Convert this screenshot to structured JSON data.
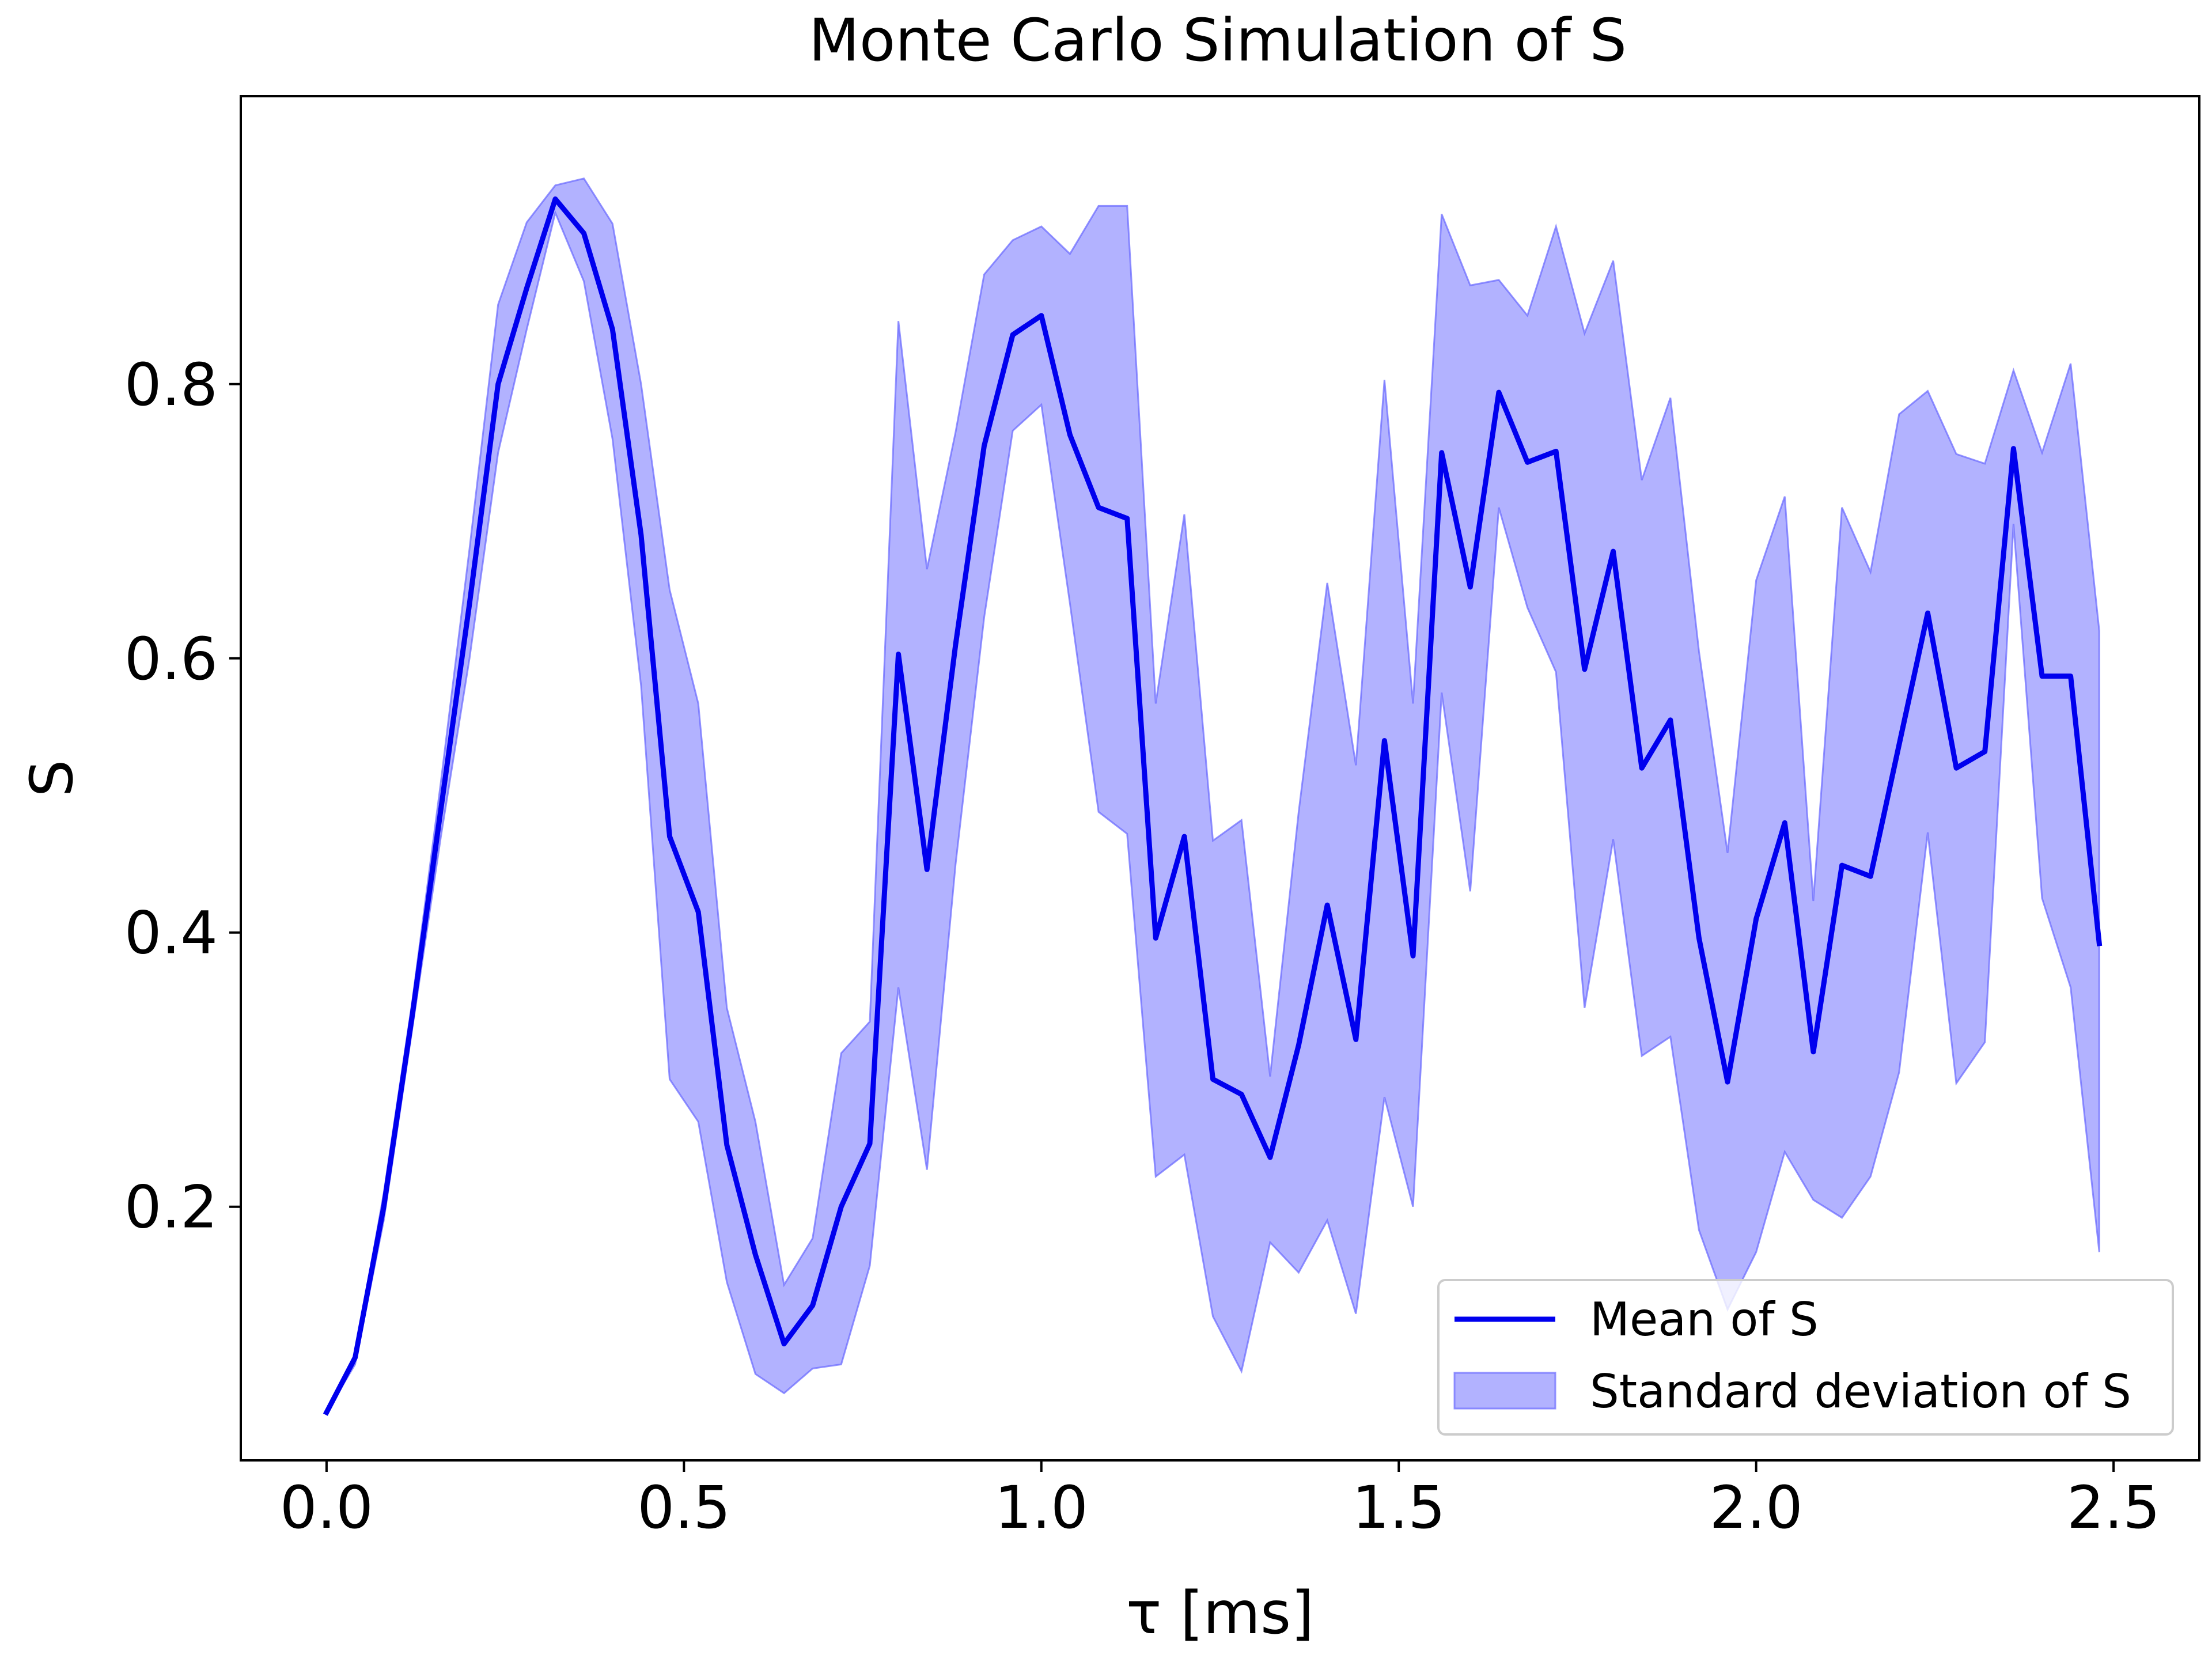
{
  "chart_data": {
    "type": "line",
    "title": "Monte Carlo Simulation of S",
    "xlabel": "τ [ms]",
    "ylabel": "S",
    "xlim": [
      -0.12,
      2.62
    ],
    "ylim": [
      0.015,
      1.01
    ],
    "xticks": [
      {
        "value": 0.0,
        "label": "0.0"
      },
      {
        "value": 0.5,
        "label": "0.5"
      },
      {
        "value": 1.0,
        "label": "1.0"
      },
      {
        "value": 1.5,
        "label": "1.5"
      },
      {
        "value": 2.0,
        "label": "2.0"
      },
      {
        "value": 2.5,
        "label": "2.5"
      }
    ],
    "yticks": [
      {
        "value": 0.2,
        "label": "0.2"
      },
      {
        "value": 0.4,
        "label": "0.4"
      },
      {
        "value": 0.6,
        "label": "0.6"
      },
      {
        "value": 0.8,
        "label": "0.8"
      }
    ],
    "grid": false,
    "legend_position": "lower-right",
    "x": [
      0.0,
      0.04,
      0.08,
      0.12,
      0.16,
      0.2,
      0.24,
      0.28,
      0.32,
      0.36,
      0.4,
      0.44,
      0.48,
      0.52,
      0.56,
      0.6,
      0.64,
      0.68,
      0.72,
      0.76,
      0.8,
      0.84,
      0.88,
      0.92,
      0.96,
      1.0,
      1.04,
      1.08,
      1.12,
      1.16,
      1.2,
      1.24,
      1.28,
      1.32,
      1.36,
      1.4,
      1.44,
      1.48,
      1.52,
      1.56,
      1.6,
      1.64,
      1.68,
      1.72,
      1.76,
      1.8,
      1.84,
      1.88,
      1.92,
      1.96,
      2.0,
      2.04,
      2.08,
      2.12,
      2.16,
      2.2,
      2.24,
      2.28,
      2.32,
      2.36,
      2.4,
      2.44,
      2.48
    ],
    "series": [
      {
        "name": "Mean of S",
        "role": "line",
        "color": "#0000ee",
        "values": [
          0.05,
          0.09,
          0.2,
          0.34,
          0.49,
          0.64,
          0.8,
          0.87,
          0.935,
          0.91,
          0.84,
          0.69,
          0.47,
          0.415,
          0.245,
          0.165,
          0.1,
          0.128,
          0.2,
          0.246,
          0.603,
          0.446,
          0.61,
          0.755,
          0.836,
          0.85,
          0.763,
          0.71,
          0.702,
          0.396,
          0.47,
          0.293,
          0.282,
          0.236,
          0.318,
          0.42,
          0.322,
          0.54,
          0.383,
          0.75,
          0.652,
          0.794,
          0.743,
          0.751,
          0.592,
          0.678,
          0.52,
          0.555,
          0.396,
          0.291,
          0.41,
          0.48,
          0.313,
          0.449,
          0.441,
          0.537,
          0.633,
          0.52,
          0.532,
          0.753,
          0.587,
          0.587,
          0.392
        ]
      },
      {
        "name": "Standard deviation of S",
        "role": "band",
        "color": "#6666ff",
        "lower": [
          0.05,
          0.085,
          0.19,
          0.33,
          0.47,
          0.6,
          0.75,
          0.84,
          0.925,
          0.875,
          0.76,
          0.58,
          0.293,
          0.262,
          0.145,
          0.078,
          0.064,
          0.082,
          0.085,
          0.157,
          0.36,
          0.227,
          0.45,
          0.63,
          0.766,
          0.785,
          0.64,
          0.488,
          0.472,
          0.222,
          0.238,
          0.12,
          0.08,
          0.174,
          0.152,
          0.19,
          0.122,
          0.28,
          0.2,
          0.575,
          0.43,
          0.71,
          0.637,
          0.59,
          0.345,
          0.468,
          0.31,
          0.324,
          0.183,
          0.125,
          0.167,
          0.24,
          0.205,
          0.192,
          0.222,
          0.298,
          0.473,
          0.29,
          0.32,
          0.698,
          0.425,
          0.36,
          0.167
        ],
        "upper": [
          0.05,
          0.092,
          0.21,
          0.35,
          0.51,
          0.68,
          0.858,
          0.918,
          0.945,
          0.95,
          0.917,
          0.8,
          0.65,
          0.567,
          0.345,
          0.262,
          0.143,
          0.177,
          0.312,
          0.335,
          0.846,
          0.665,
          0.765,
          0.88,
          0.905,
          0.915,
          0.895,
          0.93,
          0.93,
          0.567,
          0.705,
          0.467,
          0.482,
          0.295,
          0.488,
          0.655,
          0.522,
          0.803,
          0.567,
          0.924,
          0.872,
          0.876,
          0.85,
          0.915,
          0.837,
          0.89,
          0.73,
          0.79,
          0.605,
          0.458,
          0.657,
          0.718,
          0.423,
          0.71,
          0.663,
          0.778,
          0.795,
          0.749,
          0.742,
          0.81,
          0.75,
          0.815,
          0.62
        ]
      }
    ]
  }
}
